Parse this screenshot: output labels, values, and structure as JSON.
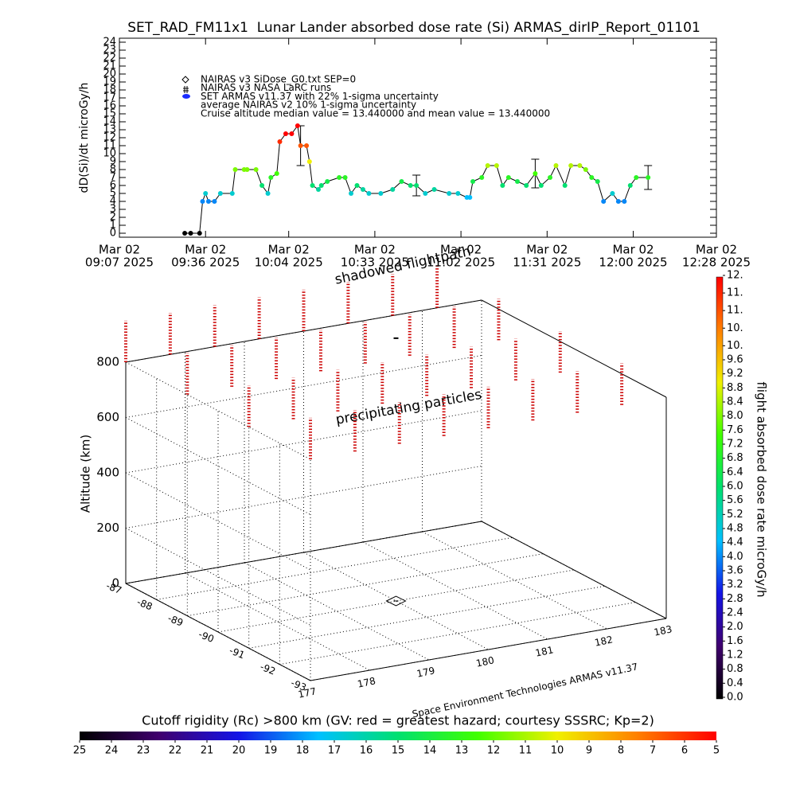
{
  "chart_data": [
    {
      "type": "line",
      "title": "SET_RAD_FM11x1  Lunar Lander absorbed dose rate (Si) ARMAS_dirIP_Report_01101",
      "ylabel": "dD(Si)/dt microGy/h",
      "legend": [
        "NAIRAS v3 SiDose_G0.txt SEP=0",
        "NAIRAS v3 NASA LaRC runs",
        "SET ARMAS v11.37 with 22% 1-sigma uncertainty",
        "average NAIRAS v2 10% 1-sigma uncertainty",
        "Cruise altitude median value = 13.440000 and mean value = 13.440000"
      ],
      "x": [
        "2025-03-02T09:29",
        "2025-03-02T09:31",
        "2025-03-02T09:34",
        "2025-03-02T09:35",
        "2025-03-02T09:36",
        "2025-03-02T09:37",
        "2025-03-02T09:39",
        "2025-03-02T09:41",
        "2025-03-02T09:45",
        "2025-03-02T09:46",
        "2025-03-02T09:49",
        "2025-03-02T09:50",
        "2025-03-02T09:53",
        "2025-03-02T09:55",
        "2025-03-02T09:57",
        "2025-03-02T09:58",
        "2025-03-02T10:00",
        "2025-03-02T10:01",
        "2025-03-02T10:03",
        "2025-03-02T10:05",
        "2025-03-02T10:07",
        "2025-03-02T10:08",
        "2025-03-02T10:10",
        "2025-03-02T10:11",
        "2025-03-02T10:12",
        "2025-03-02T10:14",
        "2025-03-02T10:15",
        "2025-03-02T10:17",
        "2025-03-02T10:21",
        "2025-03-02T10:23",
        "2025-03-02T10:25",
        "2025-03-02T10:27",
        "2025-03-02T10:29",
        "2025-03-02T10:31",
        "2025-03-02T10:35",
        "2025-03-02T10:39",
        "2025-03-02T10:42",
        "2025-03-02T10:45",
        "2025-03-02T10:47",
        "2025-03-02T10:50",
        "2025-03-02T10:53",
        "2025-03-02T10:58",
        "2025-03-02T11:01",
        "2025-03-02T11:04",
        "2025-03-02T11:05",
        "2025-03-02T11:06",
        "2025-03-02T11:09",
        "2025-03-02T11:11",
        "2025-03-02T11:14",
        "2025-03-02T11:16",
        "2025-03-02T11:18",
        "2025-03-02T11:21",
        "2025-03-02T11:24",
        "2025-03-02T11:27",
        "2025-03-02T11:29",
        "2025-03-02T11:32",
        "2025-03-02T11:34",
        "2025-03-02T11:37",
        "2025-03-02T11:39",
        "2025-03-02T11:42",
        "2025-03-02T11:44",
        "2025-03-02T11:46",
        "2025-03-02T11:48",
        "2025-03-02T11:50",
        "2025-03-02T11:53",
        "2025-03-02T11:55",
        "2025-03-02T11:57",
        "2025-03-02T11:59",
        "2025-03-02T12:01",
        "2025-03-02T12:05"
      ],
      "values": [
        0,
        0,
        0,
        4,
        5,
        4,
        4,
        5,
        5,
        8,
        8,
        8,
        8,
        6,
        5,
        7,
        7.5,
        11.5,
        12.5,
        12.5,
        13.5,
        11,
        11,
        9,
        6,
        5.5,
        6,
        6.5,
        7,
        7,
        5,
        6,
        5.5,
        5,
        5,
        5.5,
        6.5,
        6,
        6,
        5,
        5.5,
        5,
        5,
        4.5,
        4.5,
        6.5,
        7,
        8.5,
        8.5,
        6,
        7,
        6.5,
        6,
        7.5,
        6,
        7,
        8.5,
        6,
        8.5,
        8.5,
        8,
        7,
        6.5,
        4,
        5,
        4,
        4,
        6,
        7,
        7
      ],
      "error_bars": {
        "x": [
          "2025-03-02T10:08",
          "2025-03-02T10:47",
          "2025-03-02T11:27",
          "2025-03-02T12:05"
        ],
        "values": [
          11,
          6,
          7.5,
          7
        ],
        "errors": [
          2.5,
          1.3,
          1.8,
          1.5
        ]
      },
      "xlim": [
        "2025-03-02T09:07",
        "2025-03-02T12:28"
      ],
      "xticks": [
        {
          "value": "2025-03-02T09:07",
          "label": [
            "Mar 02",
            "09:07 2025"
          ]
        },
        {
          "value": "2025-03-02T09:36",
          "label": [
            "Mar 02",
            "09:36 2025"
          ]
        },
        {
          "value": "2025-03-02T10:04",
          "label": [
            "Mar 02",
            "10:04 2025"
          ]
        },
        {
          "value": "2025-03-02T10:33",
          "label": [
            "Mar 02",
            "10:33 2025"
          ]
        },
        {
          "value": "2025-03-02T11:02",
          "label": [
            "Mar 02",
            "11:02 2025"
          ]
        },
        {
          "value": "2025-03-02T11:31",
          "label": [
            "Mar 02",
            "11:31 2025"
          ]
        },
        {
          "value": "2025-03-02T12:00",
          "label": [
            "Mar 02",
            "12:00 2025"
          ]
        },
        {
          "value": "2025-03-02T12:28",
          "label": [
            "Mar 02",
            "12:28 2025"
          ]
        }
      ],
      "ylim": [
        -0.5,
        24.5
      ],
      "yticks": [
        0,
        1,
        2,
        3,
        4,
        5,
        6,
        7,
        8,
        9,
        10,
        11,
        12,
        13,
        14,
        15,
        16,
        17,
        18,
        19,
        20,
        21,
        22,
        23,
        24
      ],
      "line_color": "#000000"
    },
    {
      "type": "scatter3d",
      "zlabel": "Altitude (km)",
      "annotations": [
        "shadowed flightpath",
        "precipitating particles",
        "Space Environment Technologies ARMAS v11.37"
      ],
      "lonlim": [
        177,
        183
      ],
      "lonticks": [
        177,
        178,
        179,
        180,
        181,
        182,
        183
      ],
      "latlim": [
        -87,
        -93
      ],
      "latticks": [
        -87,
        -88,
        -89,
        -90,
        -91,
        -92,
        -93
      ],
      "zlim": [
        0,
        800
      ],
      "zticks": [
        0,
        200,
        400,
        600,
        800
      ],
      "grid": true,
      "columns": {
        "lon": [
          177,
          177.75,
          178.5,
          179.25,
          180,
          180.75,
          181.5,
          182.25
        ],
        "lat": [
          -87,
          -89,
          -91,
          -93
        ],
        "alt": [
          800,
          950
        ]
      },
      "column_color": "#cc0000",
      "position": {
        "lon": 180,
        "lat": -90,
        "alt": 950
      }
    },
    {
      "type": "colorbar",
      "orientation": "vertical",
      "label": "flight absorbed dose rate microGy/h",
      "lim": [
        0,
        12
      ],
      "colormap": [
        "#000000",
        "#40006e",
        "#1414e6",
        "#00c0ff",
        "#00e070",
        "#40ff00",
        "#f0f000",
        "#ff8000",
        "#ff0000"
      ],
      "ticks": [
        {
          "value": 0,
          "label": "0.0"
        },
        {
          "value": 0.4,
          "label": "0.4"
        },
        {
          "value": 0.8,
          "label": "0.8"
        },
        {
          "value": 1.2,
          "label": "1.2"
        },
        {
          "value": 1.6,
          "label": "1.6"
        },
        {
          "value": 2,
          "label": "2.0"
        },
        {
          "value": 2.4,
          "label": "2.4"
        },
        {
          "value": 2.8,
          "label": "2.8"
        },
        {
          "value": 3.2,
          "label": "3.2"
        },
        {
          "value": 3.6,
          "label": "3.6"
        },
        {
          "value": 4,
          "label": "4.0"
        },
        {
          "value": 4.4,
          "label": "4.4"
        },
        {
          "value": 4.8,
          "label": "4.8"
        },
        {
          "value": 5.2,
          "label": "5.2"
        },
        {
          "value": 5.6,
          "label": "5.6"
        },
        {
          "value": 6,
          "label": "6.0"
        },
        {
          "value": 6.4,
          "label": "6.4"
        },
        {
          "value": 6.8,
          "label": "6.8"
        },
        {
          "value": 7.2,
          "label": "7.2"
        },
        {
          "value": 7.6,
          "label": "7.6"
        },
        {
          "value": 8,
          "label": "8.0"
        },
        {
          "value": 8.4,
          "label": "8.4"
        },
        {
          "value": 8.8,
          "label": "8.8"
        },
        {
          "value": 9.2,
          "label": "9.2"
        },
        {
          "value": 9.6,
          "label": "9.6"
        },
        {
          "value": 10,
          "label": "10."
        },
        {
          "value": 10.5,
          "label": "10."
        },
        {
          "value": 11,
          "label": "11."
        },
        {
          "value": 11.5,
          "label": "11."
        },
        {
          "value": 12,
          "label": "12."
        }
      ]
    },
    {
      "type": "colorbar",
      "orientation": "horizontal",
      "label": "Cutoff rigidity (Rc) >800 km (GV: red = greatest hazard; courtesy SSSRC; Kp=2)",
      "lim": [
        25,
        5
      ],
      "colormap": [
        "#000000",
        "#40006e",
        "#1414e6",
        "#00c0ff",
        "#00e070",
        "#40ff00",
        "#f0f000",
        "#ff8000",
        "#ff0000"
      ],
      "ticks": [
        25,
        24,
        23,
        22,
        21,
        20,
        19,
        18,
        17,
        16,
        15,
        14,
        13,
        12,
        11,
        10,
        9,
        8,
        7,
        6,
        5
      ]
    }
  ]
}
